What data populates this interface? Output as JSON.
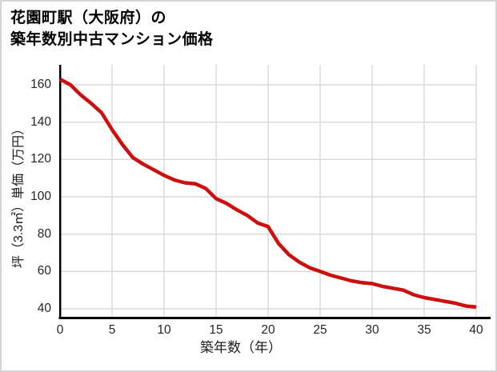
{
  "header": {
    "title_line1": "花園町駅（大阪府）の",
    "title_line2": "築年数別中古マンション価格"
  },
  "chart_data": {
    "type": "line",
    "title": "花園町駅（大阪府）の築年数別中古マンション価格",
    "xlabel": "築年数（年）",
    "ylabel": "坪（3.3㎡）単価（万円）",
    "x": [
      0,
      1,
      2,
      3,
      4,
      5,
      6,
      7,
      8,
      9,
      10,
      11,
      12,
      13,
      14,
      15,
      16,
      17,
      18,
      19,
      20,
      21,
      22,
      23,
      24,
      25,
      26,
      27,
      28,
      29,
      30,
      31,
      32,
      33,
      34,
      35,
      36,
      37,
      38,
      39,
      40
    ],
    "values": [
      163,
      160,
      154.5,
      150,
      145,
      136,
      128,
      121,
      117.5,
      114.5,
      111.5,
      109,
      107.5,
      107,
      104.5,
      99,
      96.5,
      93,
      90,
      86,
      84,
      75,
      69,
      65,
      62,
      60,
      58,
      56.5,
      55,
      54,
      53.5,
      52,
      51,
      50,
      47.5,
      46,
      45,
      44,
      43,
      41.5,
      41
    ],
    "xticks": [
      0,
      5,
      10,
      15,
      20,
      25,
      30,
      35,
      40
    ],
    "yticks": [
      40,
      60,
      80,
      100,
      120,
      140,
      160
    ],
    "xlim": [
      0,
      41.4
    ],
    "ylim": [
      35,
      171
    ],
    "grid": true,
    "legend": false,
    "line_color": "#cc0f0f",
    "axis_color": "#000000",
    "grid_color": "#d9d9d9",
    "tick_color": "#262626"
  }
}
